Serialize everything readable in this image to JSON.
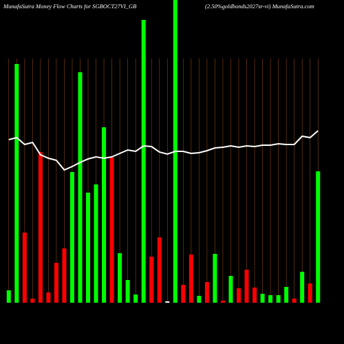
{
  "chart_data": {
    "type": "bar",
    "title": "MunafaSutra  Money Flow  Charts for SGBOCT27VI_GB",
    "subtitle": "(2.50%goldbonds2027sr-vi) MunafaSutra.com",
    "categories": [
      null,
      null,
      null,
      null,
      null,
      null,
      null,
      null,
      null,
      null,
      null,
      null,
      null,
      null,
      null,
      null,
      null,
      null,
      null,
      null,
      null,
      null,
      null,
      null,
      null,
      null,
      null,
      null,
      null,
      null,
      null,
      null,
      null,
      null,
      null,
      null,
      null,
      null,
      null,
      null
    ],
    "values": [
      18,
      347,
      102,
      6,
      219,
      15,
      58,
      79,
      190,
      335,
      160,
      172,
      255,
      211,
      72,
      33,
      12,
      411,
      67,
      95,
      2,
      440,
      26,
      70,
      10,
      30,
      71,
      3,
      39,
      21,
      48,
      22,
      13,
      11,
      11,
      23,
      6,
      45,
      28,
      191
    ],
    "colors": [
      "#00ff00",
      "#00ff00",
      "#ff0000",
      "#ff0000",
      "#ff0000",
      "#ff0000",
      "#ff0000",
      "#ff0000",
      "#00ff00",
      "#00ff00",
      "#00ff00",
      "#00ff00",
      "#00ff00",
      "#ff0000",
      "#00ff00",
      "#00ff00",
      "#00ff00",
      "#00ff00",
      "#ff0000",
      "#ff0000",
      "#ffffff",
      "#00ff00",
      "#ff0000",
      "#ff0000",
      "#00ff00",
      "#ff0000",
      "#00ff00",
      "#ff0000",
      "#00ff00",
      "#ff0000",
      "#ff0000",
      "#ff0000",
      "#00ff00",
      "#00ff00",
      "#00ff00",
      "#00ff00",
      "#ff0000",
      "#00ff00",
      "#ff0000",
      "#00ff00"
    ],
    "line": {
      "color": "#ffffff",
      "values": [
        237,
        240,
        230,
        233,
        215,
        210,
        207,
        193,
        198,
        204,
        209,
        212,
        210,
        212,
        217,
        222,
        220,
        228,
        227,
        219,
        216,
        220,
        220,
        217,
        218,
        221,
        225,
        226,
        228,
        226,
        228,
        227,
        229,
        229,
        231,
        230,
        230,
        242,
        240,
        250
      ]
    },
    "ylim": [
      0,
      440
    ],
    "grid_color": "#8b4513"
  }
}
